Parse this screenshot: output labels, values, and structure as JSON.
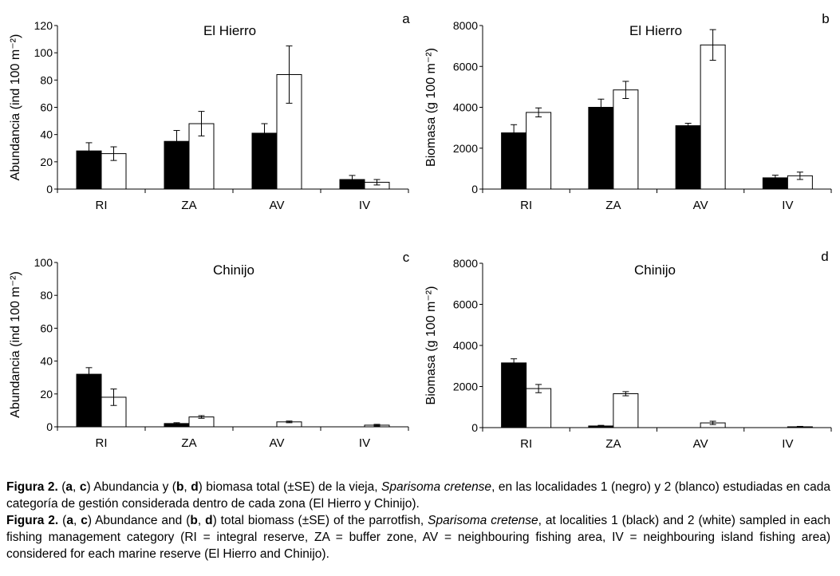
{
  "chart_data": [
    {
      "type": "bar",
      "panel": "a",
      "title": "El Hierro",
      "ylabel": "Abundancia (ind 100 m⁻²)",
      "categories": [
        "RI",
        "ZA",
        "AV",
        "IV"
      ],
      "ylim": [
        0,
        120
      ],
      "yticks": [
        0,
        20,
        40,
        60,
        80,
        100,
        120
      ],
      "series": [
        {
          "name": "1",
          "color": "#000000",
          "values": [
            28,
            35,
            41,
            7
          ],
          "errors": [
            6,
            8,
            7,
            3
          ]
        },
        {
          "name": "2",
          "color": "#ffffff",
          "values": [
            26,
            48,
            84,
            5
          ],
          "errors": [
            5,
            9,
            21,
            2
          ]
        }
      ]
    },
    {
      "type": "bar",
      "panel": "b",
      "title": "El Hierro",
      "ylabel": "Biomasa (g 100 m⁻²)",
      "categories": [
        "RI",
        "ZA",
        "AV",
        "IV"
      ],
      "ylim": [
        0,
        8000
      ],
      "yticks": [
        0,
        2000,
        4000,
        6000,
        8000
      ],
      "series": [
        {
          "name": "1",
          "color": "#000000",
          "values": [
            2750,
            4000,
            3100,
            550
          ],
          "errors": [
            400,
            400,
            120,
            130
          ]
        },
        {
          "name": "2",
          "color": "#ffffff",
          "values": [
            3750,
            4850,
            7050,
            650
          ],
          "errors": [
            220,
            420,
            750,
            180
          ]
        }
      ]
    },
    {
      "type": "bar",
      "panel": "c",
      "title": "Chinijo",
      "ylabel": "Abundancia (ind 100 m⁻²)",
      "categories": [
        "RI",
        "ZA",
        "AV",
        "IV"
      ],
      "ylim": [
        0,
        100
      ],
      "yticks": [
        0,
        20,
        40,
        60,
        80,
        100
      ],
      "series": [
        {
          "name": "1",
          "color": "#000000",
          "values": [
            32,
            2,
            0,
            0
          ],
          "errors": [
            4,
            0.5,
            0,
            0
          ]
        },
        {
          "name": "2",
          "color": "#ffffff",
          "values": [
            18,
            6,
            3,
            1
          ],
          "errors": [
            5,
            0.8,
            0.5,
            0.5
          ]
        }
      ]
    },
    {
      "type": "bar",
      "panel": "d",
      "title": "Chinijo",
      "ylabel": "Biomasa (g 100 m⁻²)",
      "categories": [
        "RI",
        "ZA",
        "AV",
        "IV"
      ],
      "ylim": [
        0,
        8000
      ],
      "yticks": [
        0,
        2000,
        4000,
        6000,
        8000
      ],
      "series": [
        {
          "name": "1",
          "color": "#000000",
          "values": [
            3150,
            80,
            0,
            0
          ],
          "errors": [
            200,
            30,
            0,
            0
          ]
        },
        {
          "name": "2",
          "color": "#ffffff",
          "values": [
            1900,
            1650,
            230,
            40
          ],
          "errors": [
            200,
            100,
            80,
            20
          ]
        }
      ]
    }
  ],
  "caption": {
    "es": {
      "fig_label": "Figura 2.",
      "p1": " (",
      "a": "a",
      "p2": ", ",
      "c": "c",
      "p3": ") Abundancia y (",
      "b": "b",
      "p4": ", ",
      "d": "d",
      "p5": ") biomasa total (±SE) de la vieja, ",
      "species": "Sparisoma cretense",
      "p6": ", en las localidades 1 (negro) y 2 (blanco) estudiadas en cada categoría de gestión considerada dentro de cada zona (El Hierro y Chinijo)."
    },
    "en": {
      "fig_label": "Figura 2.",
      "p1": " (",
      "a": "a",
      "p2": ", ",
      "c": "c",
      "p3": ") Abundance and (",
      "b": "b",
      "p4": ", ",
      "d": "d",
      "p5": ") total biomass (±SE) of the parrotfish, ",
      "species": "Sparisoma cretense",
      "p6": ", at localities 1 (black) and 2 (white) sampled in each fishing management category (RI = integral reserve, ZA = buffer zone, AV = neighbouring fishing area, IV = neighbouring island fishing area) considered for each marine reserve (El Hierro and Chinijo)."
    }
  }
}
